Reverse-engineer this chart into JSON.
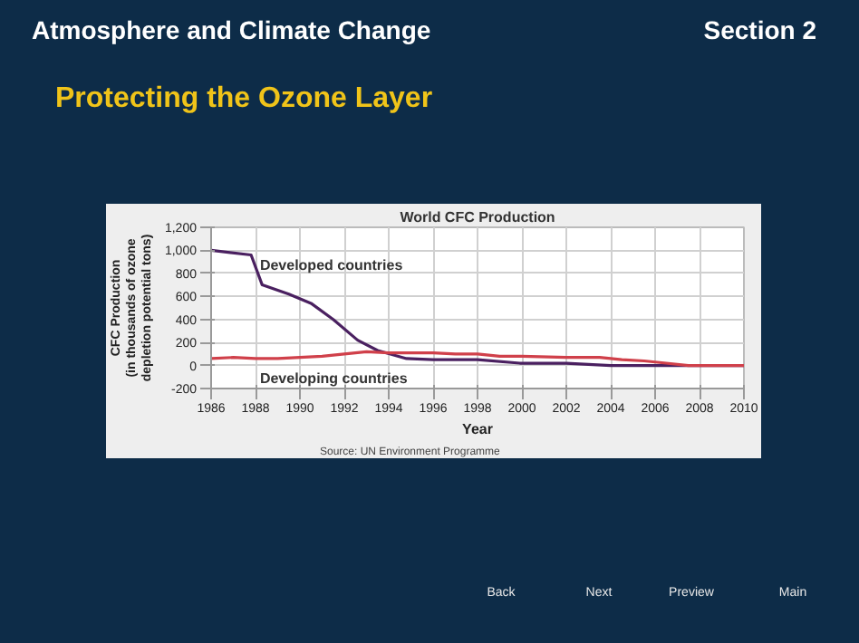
{
  "chart_data": {
    "type": "line",
    "title": "World CFC Production",
    "xlabel": "Year",
    "ylabel": "CFC Production\n(in thousands of ozone\ndepletion potential tons)",
    "xlim": [
      1986,
      2010
    ],
    "xticks": [
      1986,
      1988,
      1990,
      1992,
      1994,
      1996,
      1998,
      2000,
      2002,
      2004,
      2006,
      2008,
      2010
    ],
    "ylim": [
      -200,
      1200
    ],
    "yticks": [
      -200,
      0,
      200,
      400,
      600,
      800,
      {
        "value": 1000,
        "label": "1,000"
      },
      {
        "value": 1200,
        "label": "1,200"
      }
    ],
    "grid": true,
    "legend": false,
    "marker": "none",
    "line_style": "solid",
    "series": [
      {
        "name": "Developed countries",
        "color": "#4a2060",
        "x": [
          1986,
          1987.8,
          1988.3,
          1989.5,
          1990.5,
          1991.5,
          1992.6,
          1993.5,
          1994.8,
          1996,
          1998,
          1999.9,
          2002,
          2004,
          2006,
          2008,
          2010
        ],
        "values": [
          1000,
          960,
          700,
          620,
          540,
          400,
          220,
          130,
          60,
          50,
          50,
          20,
          20,
          0,
          0,
          0,
          0
        ]
      },
      {
        "name": "Developing countries",
        "color": "#d0404a",
        "x": [
          1986,
          1987,
          1988,
          1989,
          1990,
          1991,
          1992,
          1993,
          1994,
          1995,
          1996,
          1997,
          1998,
          1999,
          2000,
          2002,
          2003.5,
          2004.5,
          2005.5,
          2006.5,
          2007.5,
          2008,
          2010
        ],
        "values": [
          60,
          70,
          60,
          60,
          70,
          80,
          100,
          120,
          110,
          110,
          110,
          100,
          100,
          80,
          80,
          70,
          70,
          50,
          40,
          20,
          0,
          0,
          0
        ]
      }
    ],
    "annotations": [
      "Source: UN Environment Programme",
      "Atmosphere and Climate Change",
      "Section 2",
      "Protecting the Ozone Layer",
      "Back",
      "Next",
      "Preview",
      "Main"
    ]
  }
}
